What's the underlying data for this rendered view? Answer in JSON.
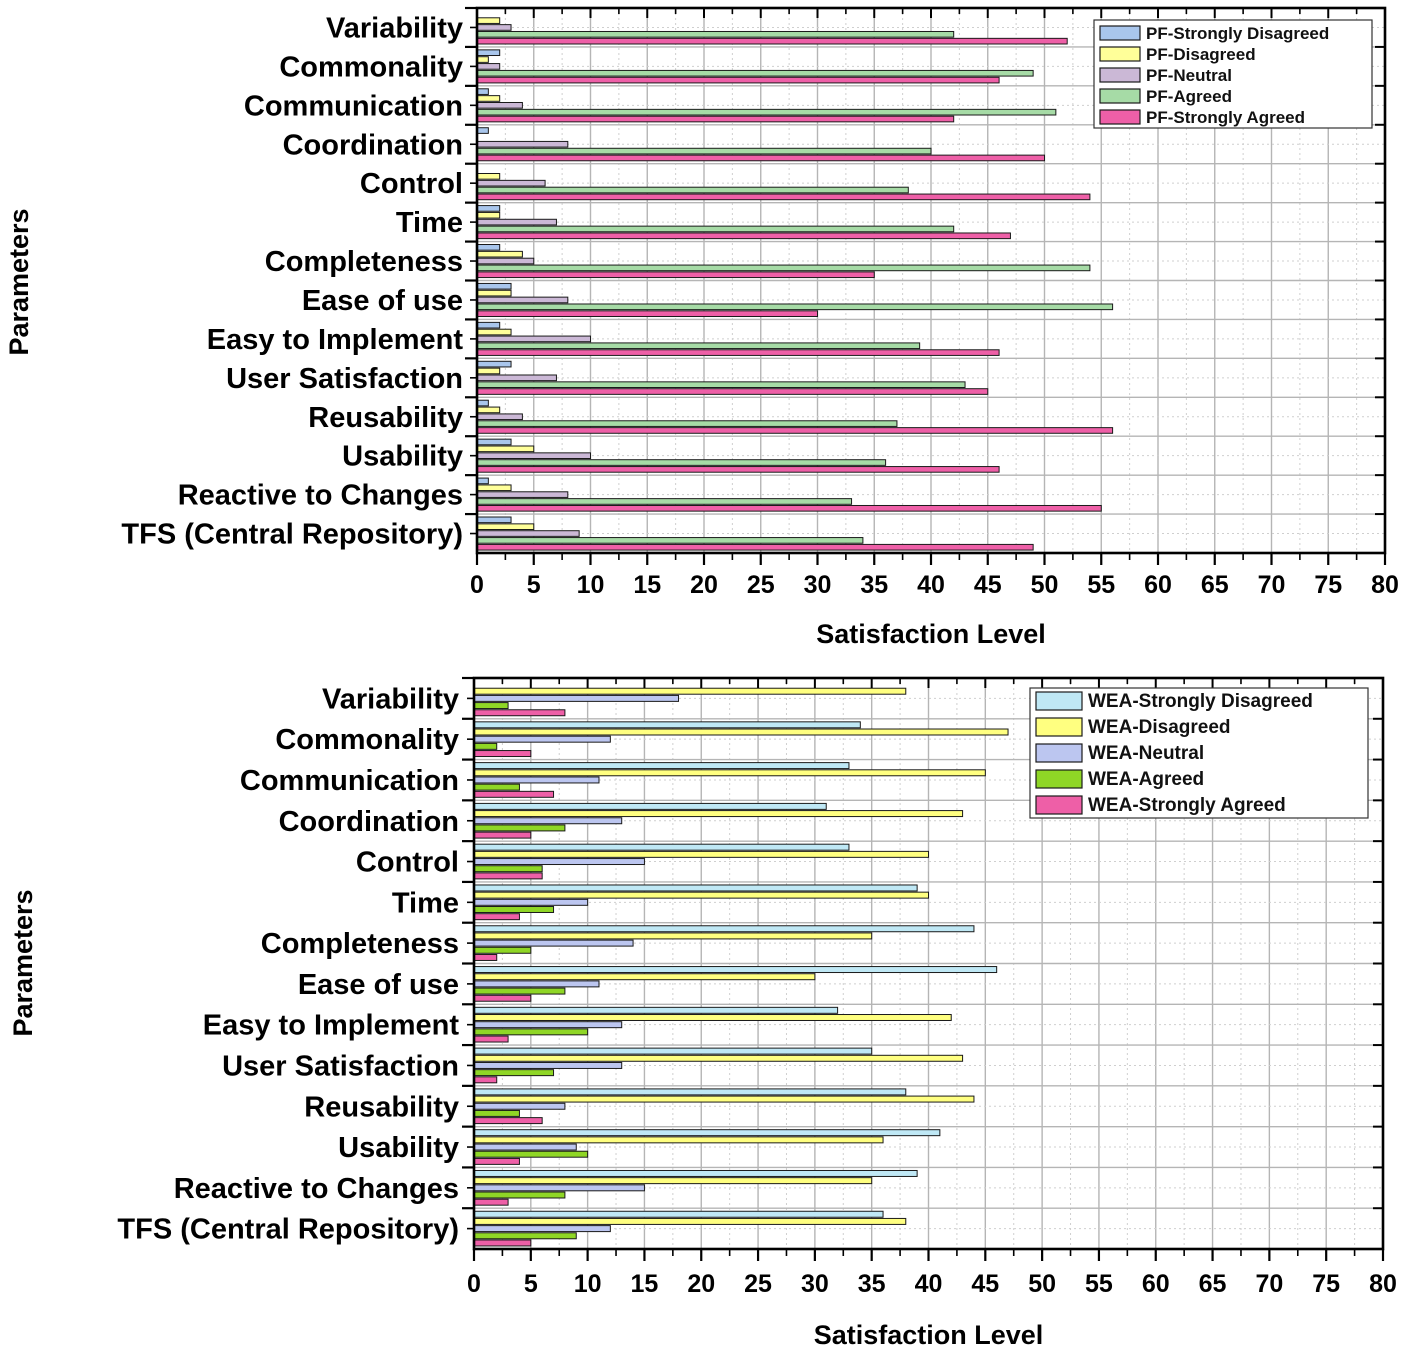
{
  "chart_data": [
    {
      "type": "bar",
      "orientation": "horizontal",
      "xlabel": "Satisfaction Level",
      "ylabel": "Parameters",
      "xlim": [
        0,
        80
      ],
      "xticks": [
        "0",
        "5",
        "10",
        "15",
        "20",
        "25",
        "30",
        "35",
        "40",
        "45",
        "50",
        "55",
        "60",
        "65",
        "70",
        "75",
        "80"
      ],
      "grid": true,
      "legend_position": "top-right",
      "categories": [
        "Variability",
        "Commonality",
        "Communication",
        "Coordination",
        "Control",
        "Time",
        "Completeness",
        "Ease of use",
        "Easy to Implement",
        "User Satisfaction",
        "Reusability",
        "Usability",
        "Reactive to Changes",
        "TFS (Central Repository)"
      ],
      "series": [
        {
          "name": "PF-Strongly Disagreed",
          "color": "#a9c6ec",
          "values": [
            0,
            2,
            1,
            1,
            0,
            2,
            2,
            3,
            2,
            3,
            1,
            3,
            1,
            3
          ]
        },
        {
          "name": "PF-Disagreed",
          "color": "#ffff99",
          "values": [
            2,
            1,
            2,
            0,
            2,
            2,
            4,
            3,
            3,
            2,
            2,
            5,
            3,
            5
          ]
        },
        {
          "name": "PF-Neutral",
          "color": "#cbb8d6",
          "values": [
            3,
            2,
            4,
            8,
            6,
            7,
            5,
            8,
            10,
            7,
            4,
            10,
            8,
            9
          ]
        },
        {
          "name": "PF-Agreed",
          "color": "#a6dba6",
          "values": [
            42,
            49,
            51,
            40,
            38,
            42,
            54,
            56,
            39,
            43,
            37,
            36,
            33,
            34
          ]
        },
        {
          "name": "PF-Strongly Agreed",
          "color": "#ee5fa7",
          "values": [
            52,
            46,
            42,
            50,
            54,
            47,
            35,
            30,
            46,
            45,
            56,
            46,
            55,
            49
          ]
        }
      ]
    },
    {
      "type": "bar",
      "orientation": "horizontal",
      "xlabel": "Satisfaction Level",
      "ylabel": "Parameters",
      "xlim": [
        0,
        80
      ],
      "xticks": [
        "0",
        "5",
        "10",
        "15",
        "20",
        "25",
        "30",
        "35",
        "40",
        "45",
        "50",
        "55",
        "60",
        "65",
        "70",
        "75",
        "80"
      ],
      "grid": true,
      "legend_position": "top-right",
      "categories": [
        "Variability",
        "Commonality",
        "Communication",
        "Coordination",
        "Control",
        "Time",
        "Completeness",
        "Ease of use",
        "Easy to Implement",
        "User Satisfaction",
        "Reusability",
        "Usability",
        "Reactive to Changes",
        "TFS (Central Repository)"
      ],
      "series": [
        {
          "name": "WEA-Strongly Disagreed",
          "color": "#bfe8f5",
          "values": [
            0,
            34,
            33,
            31,
            33,
            39,
            44,
            46,
            32,
            35,
            38,
            41,
            39,
            36
          ]
        },
        {
          "name": "WEA-Disagreed",
          "color": "#ffff80",
          "values": [
            38,
            47,
            45,
            43,
            40,
            40,
            35,
            30,
            42,
            43,
            44,
            36,
            35,
            38
          ]
        },
        {
          "name": "WEA-Neutral",
          "color": "#bcc6f0",
          "values": [
            18,
            12,
            11,
            13,
            15,
            10,
            14,
            11,
            13,
            13,
            8,
            9,
            15,
            12
          ]
        },
        {
          "name": "WEA-Agreed",
          "color": "#8fd626",
          "values": [
            3,
            2,
            4,
            8,
            6,
            7,
            5,
            8,
            10,
            7,
            4,
            10,
            8,
            9
          ]
        },
        {
          "name": "WEA-Strongly Agreed",
          "color": "#ee5fa7",
          "values": [
            8,
            5,
            7,
            5,
            6,
            4,
            2,
            5,
            3,
            2,
            6,
            4,
            3,
            5
          ]
        }
      ]
    }
  ]
}
